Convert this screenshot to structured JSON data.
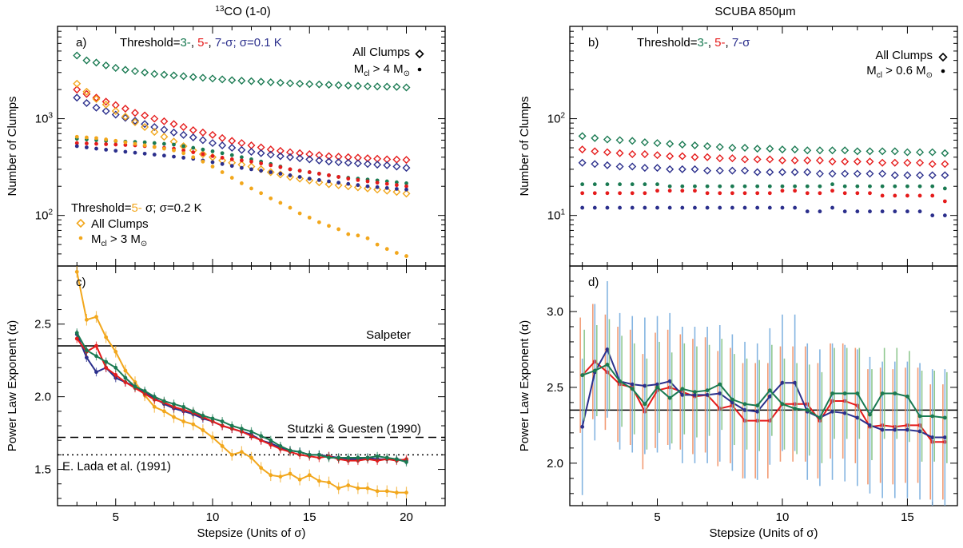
{
  "figure": {
    "left_title": "CO (1-0)",
    "left_title_sup": "13",
    "right_title": "SCUBA 850μm",
    "colors": {
      "green": "#1a7a52",
      "red": "#e51b1b",
      "blue": "#2b2f8c",
      "orange": "#f2a71c",
      "salmon": "#f08a5c",
      "lightgreen": "#7dbf7d",
      "lightblue": "#6fa8dc"
    }
  },
  "chart_data": [
    {
      "id": "a",
      "type": "scatter",
      "panel_label": "a)",
      "ylabel": "Number of Clumps",
      "yscale": "log",
      "xlim": [
        2,
        22
      ],
      "ylim": [
        30,
        9000
      ],
      "yticks": [
        {
          "v": 100,
          "base": "10",
          "exp": "2"
        },
        {
          "v": 1000,
          "base": "10",
          "exp": "3"
        }
      ],
      "xticks": [
        5,
        10,
        15,
        20
      ],
      "annotations": {
        "threshold_prefix": "Threshold=",
        "threshold_3": "3-",
        "threshold_5": "5-",
        "threshold_7": "7-σ; σ=0.1 K",
        "sep": ", ",
        "legend_all": "All Clumps",
        "legend_mcl_prefix": "M",
        "legend_mcl_sub": "cl",
        "legend_mcl_suffix": "> 4 M",
        "legend_sun": "⊙",
        "threshold2_prefix": "Threshold=",
        "threshold2_5": "5-",
        "threshold2_rest": " σ; σ=0.2 K",
        "legend2_all": "All Clumps",
        "legend2_mcl_prefix": "M",
        "legend2_mcl_sub": "cl",
        "legend2_mcl_suffix": " > 3 M",
        "legend2_sun": "⊙"
      },
      "x": [
        3.0,
        3.5,
        4.0,
        4.5,
        5.0,
        5.5,
        6.0,
        6.5,
        7.0,
        7.5,
        8.0,
        8.5,
        9.0,
        9.5,
        10.0,
        10.5,
        11.0,
        11.5,
        12.0,
        12.5,
        13.0,
        13.5,
        14.0,
        14.5,
        15.0,
        15.5,
        16.0,
        16.5,
        17.0,
        17.5,
        18.0,
        18.5,
        19.0,
        19.5,
        20.0
      ],
      "series": [
        {
          "color": "green",
          "marker": "diamond",
          "values": [
            4500,
            4000,
            3800,
            3550,
            3350,
            3200,
            3100,
            3000,
            2900,
            2850,
            2800,
            2750,
            2700,
            2650,
            2600,
            2550,
            2500,
            2470,
            2440,
            2410,
            2380,
            2350,
            2320,
            2300,
            2280,
            2260,
            2240,
            2220,
            2200,
            2180,
            2160,
            2150,
            2140,
            2130,
            2100
          ]
        },
        {
          "color": "red",
          "marker": "diamond",
          "values": [
            2000,
            1800,
            1650,
            1500,
            1380,
            1270,
            1150,
            1080,
            1000,
            940,
            880,
            820,
            760,
            720,
            680,
            630,
            590,
            560,
            530,
            505,
            480,
            465,
            450,
            440,
            430,
            420,
            410,
            405,
            400,
            395,
            390,
            385,
            380,
            378,
            375
          ]
        },
        {
          "color": "blue",
          "marker": "diamond",
          "values": [
            1650,
            1450,
            1300,
            1200,
            1100,
            1020,
            950,
            880,
            820,
            770,
            720,
            680,
            640,
            600,
            560,
            530,
            500,
            475,
            455,
            440,
            425,
            410,
            400,
            390,
            380,
            370,
            360,
            355,
            350,
            345,
            340,
            335,
            330,
            320,
            310
          ]
        },
        {
          "color": "orange",
          "marker": "diamond",
          "values": [
            2300,
            1900,
            1600,
            1400,
            1200,
            1050,
            920,
            820,
            730,
            650,
            580,
            520,
            470,
            430,
            400,
            370,
            350,
            335,
            320,
            300,
            280,
            265,
            250,
            240,
            230,
            220,
            210,
            205,
            200,
            195,
            190,
            185,
            180,
            175,
            168
          ]
        },
        {
          "color": "green",
          "marker": "dot",
          "values": [
            620,
            610,
            600,
            590,
            585,
            580,
            575,
            570,
            560,
            550,
            540,
            520,
            500,
            480,
            460,
            440,
            420,
            400,
            380,
            360,
            340,
            320,
            300,
            290,
            280,
            270,
            260,
            250,
            245,
            240,
            235,
            230,
            225,
            220,
            215
          ]
        },
        {
          "color": "red",
          "marker": "dot",
          "values": [
            560,
            555,
            550,
            545,
            540,
            535,
            530,
            520,
            510,
            500,
            490,
            470,
            450,
            430,
            410,
            395,
            380,
            370,
            360,
            345,
            330,
            315,
            300,
            290,
            280,
            270,
            260,
            250,
            240,
            232,
            225,
            218,
            212,
            206,
            200
          ]
        },
        {
          "color": "blue",
          "marker": "dot",
          "values": [
            520,
            505,
            490,
            478,
            466,
            455,
            445,
            435,
            425,
            415,
            405,
            395,
            385,
            370,
            355,
            340,
            325,
            310,
            300,
            290,
            280,
            270,
            260,
            250,
            240,
            232,
            225,
            218,
            212,
            206,
            200,
            196,
            192,
            188,
            185
          ]
        },
        {
          "color": "orange",
          "marker": "dot",
          "values": [
            650,
            640,
            630,
            610,
            590,
            570,
            550,
            530,
            510,
            490,
            470,
            440,
            400,
            360,
            320,
            280,
            245,
            215,
            190,
            170,
            150,
            135,
            120,
            105,
            95,
            85,
            78,
            72,
            64,
            62,
            58,
            50,
            45,
            41,
            38
          ]
        }
      ]
    },
    {
      "id": "b",
      "type": "scatter",
      "panel_label": "b)",
      "ylabel": "Number of Clumps",
      "yscale": "log",
      "xlim": [
        1.5,
        17
      ],
      "ylim": [
        3,
        900
      ],
      "yticks": [
        {
          "v": 10,
          "base": "10",
          "exp": "1"
        },
        {
          "v": 100,
          "base": "10",
          "exp": "2"
        }
      ],
      "xticks": [
        5,
        10,
        15
      ],
      "annotations": {
        "threshold_prefix": "Threshold=",
        "threshold_3": "3-",
        "threshold_5": "5-",
        "threshold_7": "7-σ",
        "sep": ", ",
        "legend_all": "All Clumps",
        "legend_mcl_prefix": "M",
        "legend_mcl_sub": "cl",
        "legend_mcl_suffix": " > 0.6 M",
        "legend_sun": "⊙"
      },
      "x": [
        2.0,
        2.5,
        3.0,
        3.5,
        4.0,
        4.5,
        5.0,
        5.5,
        6.0,
        6.5,
        7.0,
        7.5,
        8.0,
        8.5,
        9.0,
        9.5,
        10.0,
        10.5,
        11.0,
        11.5,
        12.0,
        12.5,
        13.0,
        13.5,
        14.0,
        14.5,
        15.0,
        15.5,
        16.0,
        16.5
      ],
      "series": [
        {
          "color": "green",
          "marker": "diamond",
          "values": [
            66,
            63,
            61,
            60,
            59,
            57,
            56,
            55,
            54,
            53,
            52,
            51,
            50,
            50,
            49,
            49,
            48,
            48,
            47,
            47,
            47,
            47,
            46,
            46,
            46,
            46,
            45,
            45,
            45,
            44
          ]
        },
        {
          "color": "red",
          "marker": "diamond",
          "values": [
            48,
            46,
            45,
            44,
            43,
            43,
            42,
            41,
            41,
            40,
            40,
            39,
            39,
            38,
            38,
            38,
            37,
            37,
            37,
            37,
            36,
            36,
            36,
            36,
            35,
            35,
            35,
            35,
            34,
            34
          ]
        },
        {
          "color": "blue",
          "marker": "diamond",
          "values": [
            35,
            34,
            33,
            32,
            32,
            31,
            31,
            30,
            30,
            30,
            29,
            29,
            29,
            29,
            28,
            28,
            28,
            28,
            28,
            27,
            27,
            27,
            27,
            27,
            27,
            26,
            26,
            26,
            26,
            26
          ]
        },
        {
          "color": "green",
          "marker": "dot",
          "values": [
            21,
            21,
            21,
            21,
            21,
            21,
            21,
            20,
            20,
            20,
            20,
            20,
            20,
            20,
            20,
            20,
            20,
            20,
            20,
            20,
            21,
            20,
            20,
            20,
            20,
            20,
            20,
            20,
            20,
            19
          ]
        },
        {
          "color": "red",
          "marker": "dot",
          "values": [
            17,
            17,
            17,
            17,
            17,
            17,
            18,
            18,
            18,
            18,
            17,
            17,
            17,
            17,
            17,
            17,
            18,
            18,
            17,
            17,
            18,
            17,
            17,
            17,
            16,
            16,
            16,
            16,
            16,
            14
          ]
        },
        {
          "color": "blue",
          "marker": "dot",
          "values": [
            12,
            12,
            12,
            12,
            12,
            12,
            12,
            12,
            12,
            12,
            12,
            12,
            12,
            12,
            12,
            12,
            12,
            12,
            11,
            11,
            12,
            11,
            11,
            11,
            11,
            11,
            11,
            11,
            10,
            10
          ]
        }
      ]
    },
    {
      "id": "c",
      "type": "line",
      "panel_label": "c)",
      "ylabel": "Power Law Exponent (α)",
      "xlabel": "Stepsize (Units of σ)",
      "xlim": [
        2,
        22
      ],
      "ylim": [
        1.25,
        2.9
      ],
      "yticks": [
        1.5,
        2.0,
        2.5
      ],
      "xticks": [
        5,
        10,
        15,
        20
      ],
      "hlines": [
        {
          "y": 2.35,
          "style": "solid",
          "label": "Salpeter"
        },
        {
          "y": 1.72,
          "style": "dashed",
          "label": "Stutzki & Guesten (1990)"
        },
        {
          "y": 1.6,
          "style": "dotted",
          "label": "E. Lada et al. (1991)"
        }
      ],
      "x": [
        3.0,
        3.5,
        4.0,
        4.5,
        5.0,
        5.5,
        6.0,
        6.5,
        7.0,
        7.5,
        8.0,
        8.5,
        9.0,
        9.5,
        10.0,
        10.5,
        11.0,
        11.5,
        12.0,
        12.5,
        13.0,
        13.5,
        14.0,
        14.5,
        15.0,
        15.5,
        16.0,
        16.5,
        17.0,
        17.5,
        18.0,
        18.5,
        19.0,
        19.5,
        20.0
      ],
      "series": [
        {
          "color": "orange",
          "err": 0.04,
          "values": [
            2.86,
            2.53,
            2.55,
            2.41,
            2.31,
            2.18,
            2.1,
            2.01,
            1.93,
            1.9,
            1.86,
            1.83,
            1.81,
            1.77,
            1.72,
            1.66,
            1.6,
            1.62,
            1.58,
            1.51,
            1.46,
            1.45,
            1.47,
            1.43,
            1.46,
            1.42,
            1.41,
            1.37,
            1.39,
            1.37,
            1.37,
            1.35,
            1.35,
            1.34,
            1.34
          ]
        },
        {
          "color": "blue",
          "err": 0.03,
          "values": [
            2.43,
            2.27,
            2.17,
            2.2,
            2.13,
            2.1,
            2.07,
            2.03,
            1.99,
            1.95,
            1.92,
            1.9,
            1.88,
            1.85,
            1.83,
            1.8,
            1.78,
            1.76,
            1.74,
            1.7,
            1.68,
            1.65,
            1.63,
            1.62,
            1.6,
            1.6,
            1.59,
            1.58,
            1.57,
            1.57,
            1.58,
            1.57,
            1.57,
            1.57,
            1.56
          ]
        },
        {
          "color": "red",
          "err": 0.03,
          "values": [
            2.4,
            2.31,
            2.35,
            2.2,
            2.15,
            2.1,
            2.06,
            2.02,
            1.98,
            1.96,
            1.93,
            1.91,
            1.89,
            1.86,
            1.83,
            1.8,
            1.78,
            1.76,
            1.73,
            1.7,
            1.67,
            1.64,
            1.62,
            1.6,
            1.59,
            1.58,
            1.59,
            1.57,
            1.56,
            1.56,
            1.57,
            1.56,
            1.57,
            1.56,
            1.57
          ]
        },
        {
          "color": "green",
          "err": 0.03,
          "values": [
            2.44,
            2.32,
            2.28,
            2.24,
            2.2,
            2.13,
            2.07,
            2.04,
            2.0,
            1.97,
            1.95,
            1.93,
            1.9,
            1.87,
            1.85,
            1.83,
            1.8,
            1.78,
            1.76,
            1.73,
            1.7,
            1.66,
            1.63,
            1.62,
            1.6,
            1.6,
            1.58,
            1.58,
            1.58,
            1.58,
            1.58,
            1.59,
            1.58,
            1.57,
            1.55
          ]
        }
      ]
    },
    {
      "id": "d",
      "type": "line",
      "panel_label": "d)",
      "ylabel": "Power Law Exponent (α)",
      "xlabel": "Stepsize (Units of σ)",
      "xlim": [
        1.5,
        17
      ],
      "ylim": [
        1.72,
        3.3
      ],
      "yticks": [
        2.0,
        2.5,
        3.0
      ],
      "xticks": [
        5,
        10,
        15
      ],
      "hlines": [
        {
          "y": 2.35,
          "style": "solid",
          "label": ""
        }
      ],
      "x": [
        2.0,
        2.5,
        3.0,
        3.5,
        4.0,
        4.5,
        5.0,
        5.5,
        6.0,
        6.5,
        7.0,
        7.5,
        8.0,
        8.5,
        9.0,
        9.5,
        10.0,
        10.5,
        11.0,
        11.5,
        12.0,
        12.5,
        13.0,
        13.5,
        14.0,
        14.5,
        15.0,
        15.5,
        16.0,
        16.5
      ],
      "series": [
        {
          "color": "red",
          "errcolor": "salmon",
          "err": 0.38,
          "values": [
            2.58,
            2.67,
            2.6,
            2.52,
            2.5,
            2.34,
            2.48,
            2.5,
            2.47,
            2.44,
            2.45,
            2.36,
            2.38,
            2.28,
            2.28,
            2.28,
            2.39,
            2.39,
            2.39,
            2.28,
            2.41,
            2.41,
            2.38,
            2.24,
            2.25,
            2.24,
            2.25,
            2.25,
            2.14,
            2.14
          ]
        },
        {
          "color": "blue",
          "errcolor": "lightblue",
          "err": 0.45,
          "values": [
            2.24,
            2.6,
            2.75,
            2.54,
            2.52,
            2.51,
            2.52,
            2.54,
            2.45,
            2.45,
            2.45,
            2.46,
            2.4,
            2.35,
            2.34,
            2.44,
            2.53,
            2.53,
            2.34,
            2.3,
            2.34,
            2.33,
            2.3,
            2.25,
            2.22,
            2.22,
            2.22,
            2.21,
            2.17,
            2.17
          ]
        },
        {
          "color": "green",
          "errcolor": "lightgreen",
          "err": 0.3,
          "values": [
            2.58,
            2.61,
            2.65,
            2.54,
            2.49,
            2.39,
            2.5,
            2.43,
            2.49,
            2.47,
            2.48,
            2.52,
            2.42,
            2.39,
            2.38,
            2.48,
            2.39,
            2.36,
            2.35,
            2.3,
            2.46,
            2.46,
            2.46,
            2.32,
            2.46,
            2.46,
            2.44,
            2.31,
            2.31,
            2.3
          ]
        }
      ]
    }
  ]
}
